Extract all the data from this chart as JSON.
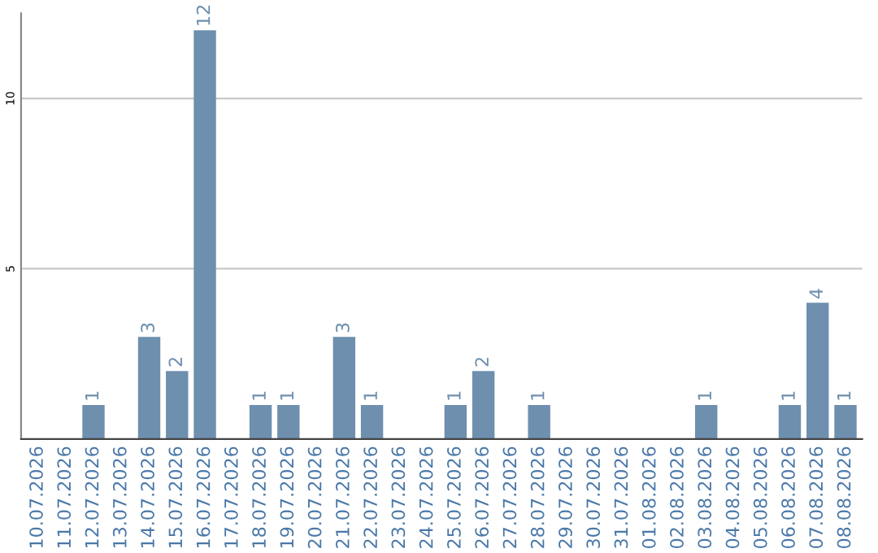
{
  "chart_data": {
    "type": "bar",
    "categories": [
      "10.07.2026",
      "11.07.2026",
      "12.07.2026",
      "13.07.2026",
      "14.07.2026",
      "15.07.2026",
      "16.07.2026",
      "17.07.2026",
      "18.07.2026",
      "19.07.2026",
      "20.07.2026",
      "21.07.2026",
      "22.07.2026",
      "23.07.2026",
      "24.07.2026",
      "25.07.2026",
      "26.07.2026",
      "27.07.2026",
      "28.07.2026",
      "29.07.2026",
      "30.07.2026",
      "31.07.2026",
      "01.08.2026",
      "02.08.2026",
      "03.08.2026",
      "04.08.2026",
      "05.08.2026",
      "06.08.2026",
      "07.08.2026",
      "08.08.2026"
    ],
    "values": [
      0,
      0,
      1,
      0,
      3,
      2,
      12,
      0,
      1,
      1,
      0,
      3,
      1,
      0,
      0,
      1,
      2,
      0,
      1,
      0,
      0,
      0,
      0,
      0,
      1,
      0,
      0,
      1,
      4,
      1
    ],
    "value_labels": [
      null,
      null,
      "1",
      null,
      "3",
      "2",
      "12",
      null,
      "1",
      "1",
      null,
      "3",
      "1",
      null,
      null,
      "1",
      "2",
      null,
      "1",
      null,
      null,
      null,
      null,
      null,
      "1",
      null,
      null,
      "1",
      "4",
      "1"
    ],
    "color": "#6e8fae",
    "ylim": [
      0,
      12.5
    ],
    "yticks": [
      5,
      10
    ],
    "grid": "y"
  }
}
